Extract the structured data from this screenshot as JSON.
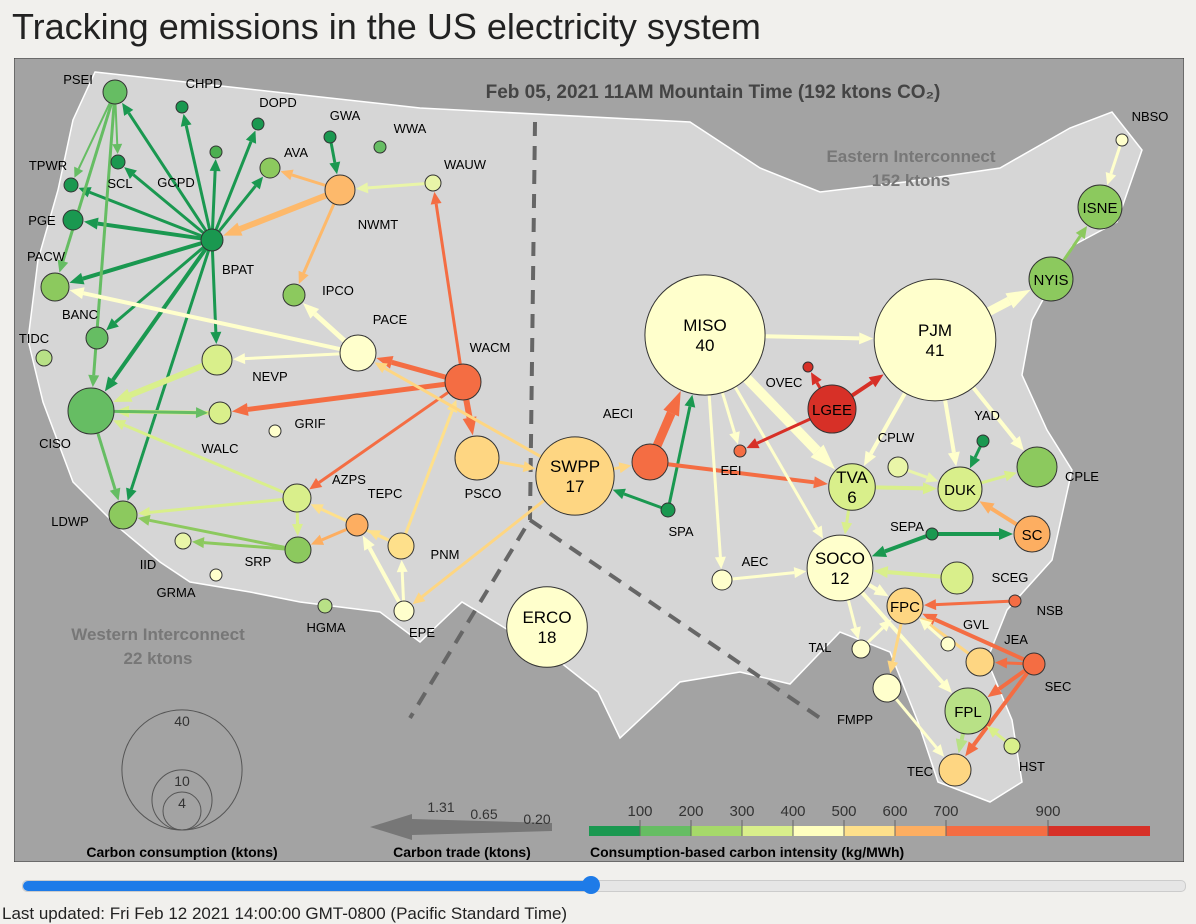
{
  "title": "Tracking emissions in the US electricity system",
  "map": {
    "header": "Feb 05, 2021 11AM Mountain Time (192 ktons CO₂)",
    "regions": [
      {
        "name": "Western Interconnect",
        "total": "22 ktons"
      },
      {
        "name": "Eastern Interconnect",
        "total": "152 ktons"
      }
    ],
    "nodes": [
      {
        "label": "PSEI",
        "color": "#66bd63"
      },
      {
        "label": "CHPD",
        "color": "#1a9850"
      },
      {
        "label": "DOPD",
        "color": "#1a9850"
      },
      {
        "label": "GWA",
        "color": "#1a9850"
      },
      {
        "label": "WWA",
        "color": "#66bd63"
      },
      {
        "label": "GCPD",
        "color": "#4caf50"
      },
      {
        "label": "AVA",
        "color": "#8cc95e"
      },
      {
        "label": "SCL",
        "color": "#1a9850"
      },
      {
        "label": "TPWR",
        "color": "#1a9850"
      },
      {
        "label": "NWMT",
        "color": "#fdb96b"
      },
      {
        "label": "WAUW",
        "color": "#e9f5a8"
      },
      {
        "label": "PGE",
        "color": "#1a9850"
      },
      {
        "label": "BPAT",
        "color": "#1a9850"
      },
      {
        "label": "PACW",
        "color": "#8cc95e"
      },
      {
        "label": "IPCO",
        "color": "#8cc95e"
      },
      {
        "label": "BANC",
        "color": "#66bd63"
      },
      {
        "label": "PACE",
        "color": "#ffffcc"
      },
      {
        "label": "WACM",
        "color": "#f46d43"
      },
      {
        "label": "TIDC",
        "color": "#b8e186"
      },
      {
        "label": "NEVP",
        "color": "#d9ef8b"
      },
      {
        "label": "CISO",
        "color": "#66bd63"
      },
      {
        "label": "WALC",
        "color": "#d9ef8b"
      },
      {
        "label": "GRIF",
        "color": "#ffffcc"
      },
      {
        "label": "PSCO",
        "color": "#fed682"
      },
      {
        "label": "SWPP",
        "value": 17,
        "color": "#fed682"
      },
      {
        "label": "AECI",
        "color": "#f46d43"
      },
      {
        "label": "AZPS",
        "color": "#d9ef8b"
      },
      {
        "label": "TEPC",
        "color": "#fdae61"
      },
      {
        "label": "LDWP",
        "color": "#8cc95e"
      },
      {
        "label": "SRP",
        "color": "#8cc95e"
      },
      {
        "label": "PNM",
        "color": "#fee08b"
      },
      {
        "label": "IID",
        "color": "#e9f5a8"
      },
      {
        "label": "GRMA",
        "color": "#ffffcc"
      },
      {
        "label": "SPA",
        "color": "#1a9850"
      },
      {
        "label": "HGMA",
        "color": "#b8e186"
      },
      {
        "label": "EPE",
        "color": "#ffffcc"
      },
      {
        "label": "ERCO",
        "value": 18,
        "color": "#ffffcc"
      },
      {
        "label": "MISO",
        "value": 40,
        "color": "#ffffcc"
      },
      {
        "label": "PJM",
        "value": 41,
        "color": "#ffffcc"
      },
      {
        "label": "LGEE",
        "color": "#d73027"
      },
      {
        "label": "OVEC",
        "color": "#d73027"
      },
      {
        "label": "EEI",
        "color": "#f46d43"
      },
      {
        "label": "YAD",
        "color": "#1a9850"
      },
      {
        "label": "NBSO",
        "color": "#ffffcc"
      },
      {
        "label": "ISNE",
        "color": "#8cc95e"
      },
      {
        "label": "NYIS",
        "color": "#8cc95e"
      },
      {
        "label": "TVA",
        "value": 6,
        "color": "#d9ef8b"
      },
      {
        "label": "CPLW",
        "color": "#e9f5a8"
      },
      {
        "label": "DUK",
        "color": "#d9ef8b"
      },
      {
        "label": "CPLE",
        "color": "#8cc95e"
      },
      {
        "label": "SEPA",
        "color": "#1a9850"
      },
      {
        "label": "SC",
        "color": "#fdae61"
      },
      {
        "label": "SOCO",
        "value": 12,
        "color": "#ffffcc"
      },
      {
        "label": "AEC",
        "color": "#ffffcc"
      },
      {
        "label": "SCEG",
        "color": "#d9ef8b"
      },
      {
        "label": "FPC",
        "color": "#fed682"
      },
      {
        "label": "NSB",
        "color": "#f46d43"
      },
      {
        "label": "GVL",
        "color": "#ffffcc"
      },
      {
        "label": "JEA",
        "color": "#fed682"
      },
      {
        "label": "SEC",
        "color": "#f46d43"
      },
      {
        "label": "TAL",
        "color": "#ffffcc"
      },
      {
        "label": "FMPP",
        "color": "#ffffcc"
      },
      {
        "label": "FPL",
        "color": "#b8e186"
      },
      {
        "label": "HST",
        "color": "#d9ef8b"
      },
      {
        "label": "TEC",
        "color": "#fed682"
      }
    ]
  },
  "legend": {
    "size": {
      "title": "Carbon consumption (ktons)",
      "values": [
        40,
        10,
        4
      ]
    },
    "trade": {
      "title": "Carbon trade (ktons)",
      "values": [
        1.31,
        0.65,
        {
          "value": 0.2,
          "label": "0.20"
        }
      ]
    },
    "intensity": {
      "title": "Consumption-based carbon intensity (kg/MWh)",
      "xlim": [
        0,
        1100
      ],
      "ticks": [
        100,
        200,
        300,
        400,
        500,
        600,
        700,
        900
      ],
      "stops": [
        {
          "value": 0,
          "color": "#1a9850"
        },
        {
          "value": 100,
          "color": "#66bd63"
        },
        {
          "value": 200,
          "color": "#a6d96a"
        },
        {
          "value": 300,
          "color": "#d9ef8b"
        },
        {
          "value": 400,
          "color": "#ffffbf"
        },
        {
          "value": 500,
          "color": "#fee08b"
        },
        {
          "value": 600,
          "color": "#fdae61"
        },
        {
          "value": 700,
          "color": "#f46d43"
        },
        {
          "value": 900,
          "color": "#d73027"
        }
      ]
    }
  },
  "footer": "Last updated: Fri Feb 12 2021 14:00:00 GMT-0800 (Pacific Standard Time)"
}
